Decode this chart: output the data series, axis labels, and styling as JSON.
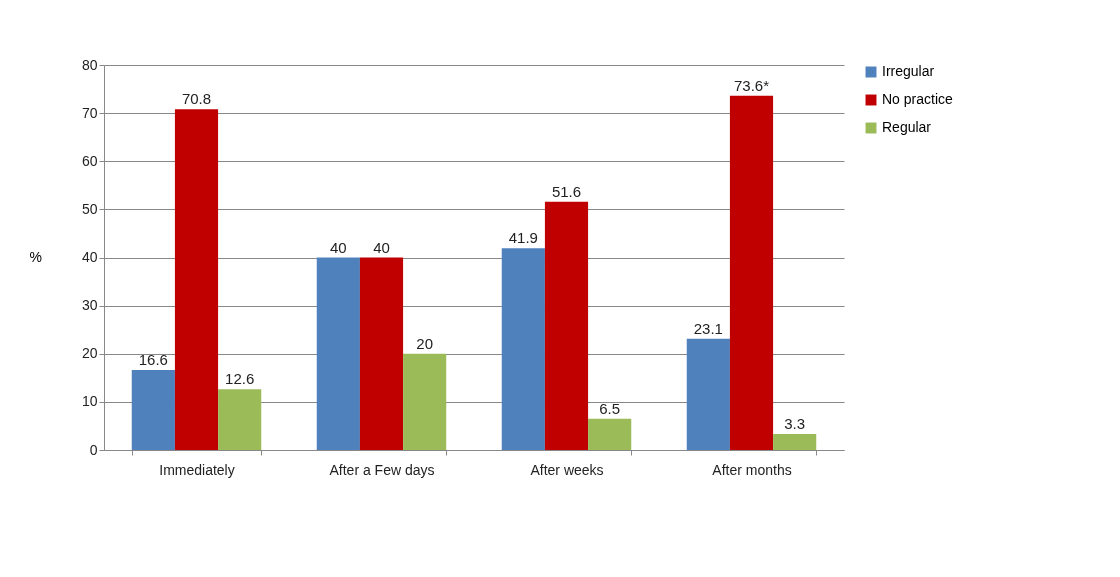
{
  "chart_data": {
    "type": "bar",
    "ylabel": "%",
    "categories": [
      "Immediately",
      "After a Few days",
      "After weeks",
      "After months"
    ],
    "series": [
      {
        "name": "Irregular",
        "color": "#4f81bd",
        "values": [
          16.6,
          40,
          41.9,
          23.1
        ],
        "value_labels": [
          "16.6",
          "40",
          "41.9",
          "23.1"
        ]
      },
      {
        "name": "No practice",
        "color": "#c00000",
        "values": [
          70.8,
          40,
          51.6,
          73.6
        ],
        "value_labels": [
          "70.8",
          "40",
          "51.6",
          "73.6*"
        ]
      },
      {
        "name": "Regular",
        "color": "#9bbb59",
        "values": [
          12.6,
          20,
          6.5,
          3.3
        ],
        "value_labels": [
          "12.6",
          "20",
          "6.5",
          "3.3"
        ]
      }
    ],
    "ylim": [
      0,
      80
    ],
    "yticks": [
      0,
      10,
      20,
      30,
      40,
      50,
      60,
      70,
      80
    ],
    "grid": "y",
    "legend": "right"
  }
}
